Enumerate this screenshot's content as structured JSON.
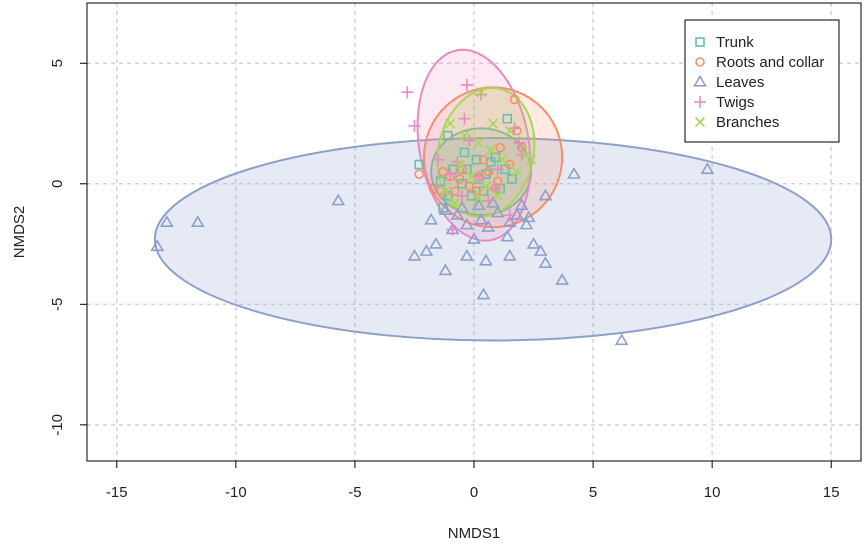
{
  "chart_data": {
    "type": "scatter",
    "title": "",
    "xlabel": "NMDS1",
    "ylabel": "NMDS2",
    "xlim": [
      -16.25,
      16.25
    ],
    "ylim": [
      -11.5,
      7.5
    ],
    "xticks": [
      -15,
      -10,
      -5,
      0,
      5,
      10,
      15
    ],
    "yticks": [
      -10,
      -5,
      0,
      5
    ],
    "grid": true,
    "legend_position": "top-right",
    "series": [
      {
        "name": "Trunk",
        "marker": "square",
        "color": "#66c2a5",
        "ellipse": {
          "cx": 0.3,
          "cy": 0.5,
          "rx": 2.1,
          "ry": 1.8,
          "angle": 0
        },
        "points": [
          [
            -2.3,
            0.8
          ],
          [
            -0.9,
            0.6
          ],
          [
            -1.4,
            0.1
          ],
          [
            -0.4,
            1.3
          ],
          [
            0.1,
            1.0
          ],
          [
            0.5,
            0.4
          ],
          [
            0.9,
            1.1
          ],
          [
            1.3,
            0.6
          ],
          [
            0.2,
            0.2
          ],
          [
            -0.5,
            0.0
          ],
          [
            0.7,
            0.9
          ],
          [
            -1.1,
            -0.5
          ],
          [
            -1.3,
            -1.0
          ],
          [
            -0.3,
            0.6
          ],
          [
            1.1,
            -0.2
          ],
          [
            0.4,
            -0.3
          ],
          [
            -0.1,
            -0.5
          ],
          [
            1.4,
            2.7
          ],
          [
            -1.1,
            2.0
          ],
          [
            1.6,
            0.2
          ]
        ]
      },
      {
        "name": "Roots and collar",
        "marker": "circle",
        "color": "#fc8d62",
        "ellipse": {
          "cx": 0.8,
          "cy": 1.1,
          "rx": 2.9,
          "ry": 2.9,
          "angle": 0
        },
        "points": [
          [
            -2.3,
            0.4
          ],
          [
            -1.7,
            -0.2
          ],
          [
            -1.4,
            -0.3
          ],
          [
            -1.0,
            0.3
          ],
          [
            -0.6,
            0.2
          ],
          [
            -0.2,
            -0.1
          ],
          [
            0.2,
            0.3
          ],
          [
            0.6,
            0.5
          ],
          [
            1.0,
            0.1
          ],
          [
            1.5,
            0.8
          ],
          [
            2.0,
            1.5
          ],
          [
            1.8,
            2.2
          ],
          [
            1.7,
            3.5
          ],
          [
            1.1,
            1.5
          ],
          [
            0.4,
            1.0
          ],
          [
            -0.8,
            -0.3
          ],
          [
            0.9,
            -0.2
          ],
          [
            -0.5,
            0.6
          ],
          [
            0.1,
            -0.3
          ],
          [
            -1.3,
            0.5
          ]
        ]
      },
      {
        "name": "Leaves",
        "marker": "triangle",
        "color": "#8da0cb",
        "ellipse": {
          "cx": 0.8,
          "cy": -2.3,
          "rx": 14.2,
          "ry": 4.2,
          "angle": 0
        },
        "points": [
          [
            -13.3,
            -2.6
          ],
          [
            -12.9,
            -1.6
          ],
          [
            -11.6,
            -1.6
          ],
          [
            -5.7,
            -0.7
          ],
          [
            -2.5,
            -3.0
          ],
          [
            -2.0,
            -2.8
          ],
          [
            -1.6,
            -2.5
          ],
          [
            -1.2,
            -3.6
          ],
          [
            -1.8,
            -1.5
          ],
          [
            -0.9,
            -1.9
          ],
          [
            -0.3,
            -3.0
          ],
          [
            0.0,
            -2.3
          ],
          [
            0.3,
            -1.5
          ],
          [
            0.5,
            -3.2
          ],
          [
            0.4,
            -4.6
          ],
          [
            1.4,
            -2.2
          ],
          [
            1.5,
            -3.0
          ],
          [
            2.2,
            -1.7
          ],
          [
            2.5,
            -2.5
          ],
          [
            2.8,
            -2.8
          ],
          [
            3.0,
            -3.3
          ],
          [
            3.0,
            -0.5
          ],
          [
            3.7,
            -4.0
          ],
          [
            4.2,
            0.4
          ],
          [
            6.2,
            -6.5
          ],
          [
            9.8,
            0.6
          ],
          [
            1.0,
            -1.2
          ],
          [
            -0.5,
            -1.0
          ],
          [
            0.8,
            -0.8
          ],
          [
            1.8,
            -1.3
          ],
          [
            2.0,
            -0.9
          ],
          [
            -1.2,
            -1.1
          ],
          [
            0.2,
            -0.9
          ],
          [
            1.5,
            -1.6
          ],
          [
            -0.3,
            -1.7
          ],
          [
            -0.7,
            -1.3
          ],
          [
            2.3,
            -1.4
          ],
          [
            0.6,
            -1.8
          ]
        ]
      },
      {
        "name": "Twigs",
        "marker": "plus",
        "color": "#e78ac3",
        "ellipse": {
          "cx": 0.0,
          "cy": 1.6,
          "rx": 2.3,
          "ry": 4.0,
          "angle": -10
        },
        "points": [
          [
            -2.8,
            3.8
          ],
          [
            -2.5,
            2.4
          ],
          [
            -0.3,
            4.1
          ],
          [
            0.3,
            3.7
          ],
          [
            1.7,
            2.3
          ],
          [
            -0.4,
            2.7
          ],
          [
            -0.9,
            -1.9
          ],
          [
            1.5,
            -1.3
          ],
          [
            -1.5,
            1.0
          ],
          [
            -1.0,
            0.4
          ],
          [
            -0.5,
            -0.5
          ],
          [
            0.2,
            0.3
          ],
          [
            0.6,
            -0.7
          ],
          [
            1.0,
            0.6
          ],
          [
            1.9,
            1.7
          ],
          [
            -1.2,
            -0.4
          ],
          [
            2.0,
            1.2
          ],
          [
            -0.2,
            1.8
          ],
          [
            0.9,
            -0.2
          ],
          [
            -0.7,
            0.9
          ]
        ]
      },
      {
        "name": "Branches",
        "marker": "x",
        "color": "#a6d854",
        "ellipse": {
          "cx": 0.5,
          "cy": 1.3,
          "rx": 2.0,
          "ry": 2.7,
          "angle": 12
        },
        "points": [
          [
            0.3,
            3.8
          ],
          [
            -1.0,
            2.5
          ],
          [
            -0.4,
            2.0
          ],
          [
            0.2,
            1.7
          ],
          [
            0.7,
            1.4
          ],
          [
            1.2,
            1.0
          ],
          [
            1.8,
            0.5
          ],
          [
            2.2,
            1.2
          ],
          [
            2.4,
            1.0
          ],
          [
            -0.6,
            0.8
          ],
          [
            -0.1,
            0.3
          ],
          [
            0.5,
            -0.1
          ],
          [
            1.0,
            -0.5
          ],
          [
            -1.2,
            -0.3
          ],
          [
            0.8,
            2.5
          ],
          [
            1.5,
            2.2
          ],
          [
            -0.8,
            -0.8
          ],
          [
            0.2,
            -0.6
          ]
        ]
      }
    ]
  }
}
